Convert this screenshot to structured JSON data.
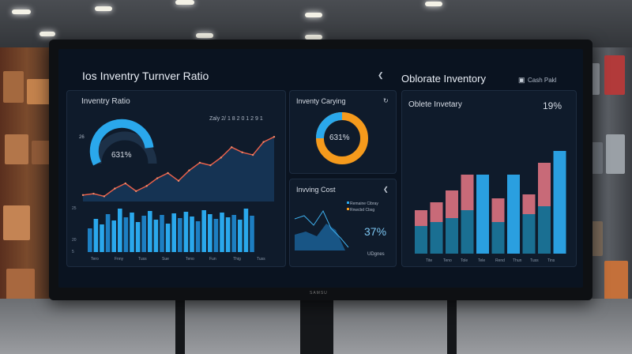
{
  "dashboard": {
    "title": "Ios Inventry Turnver Ratio",
    "right_title": "Oblorate Inventory",
    "right_action": "Cash Pakl"
  },
  "turnover_panel": {
    "title": "Inventry Ratio",
    "gauge_value": "631%",
    "legend": "Zaly 2/ 1 8 2 0 1 2 9 1"
  },
  "carrying_panel": {
    "title": "Inventy Carying",
    "donut_value": "631%"
  },
  "cost_panel": {
    "title": "Invving Cost",
    "legend_1": "Remaine Cibray",
    "legend_2": "Rnwcbd Cbsg",
    "value": "37%",
    "footer": "UDgnes"
  },
  "obsolete_panel": {
    "title": "Oblete Invetary",
    "value": "19%"
  },
  "colors": {
    "accent": "#2aa8ec",
    "orange": "#f59a1c",
    "red": "#c86a78",
    "teal": "#1a6f92"
  },
  "chart_data": {
    "type": "bar",
    "note_series": [
      {
        "values": [
          30,
          42,
          35,
          48,
          40,
          55,
          44,
          50,
          38,
          46,
          52,
          41,
          47,
          36,
          49,
          43,
          51,
          45,
          39,
          53,
          48,
          42,
          50,
          44,
          47,
          41,
          55,
          46
        ]
      }
    ],
    "line_values": [
      5,
      6,
      4,
      10,
      14,
      8,
      12,
      18,
      22,
      16,
      24,
      30,
      28,
      34,
      42,
      38,
      36,
      46,
      50
    ],
    "stacked": [
      {
        "blue": 35,
        "red": 20
      },
      {
        "blue": 40,
        "red": 25
      },
      {
        "blue": 45,
        "red": 35
      },
      {
        "blue": 55,
        "red": 45
      },
      {
        "blue": 100,
        "red": 0
      },
      {
        "blue": 40,
        "red": 30
      },
      {
        "blue": 100,
        "red": 0
      },
      {
        "blue": 50,
        "red": 25
      },
      {
        "blue": 60,
        "red": 55
      },
      {
        "blue": 130,
        "red": 0
      }
    ],
    "x_ticks": [
      "Tero",
      "Fnny",
      "Tuss",
      "Sue",
      "Teno",
      "Fun",
      "Thig",
      "Tuss"
    ],
    "right_x_ticks": [
      "Tite",
      "Teno",
      "Tole",
      "Tele",
      "Rend",
      "Thun",
      "Tuss",
      "Tins"
    ]
  }
}
